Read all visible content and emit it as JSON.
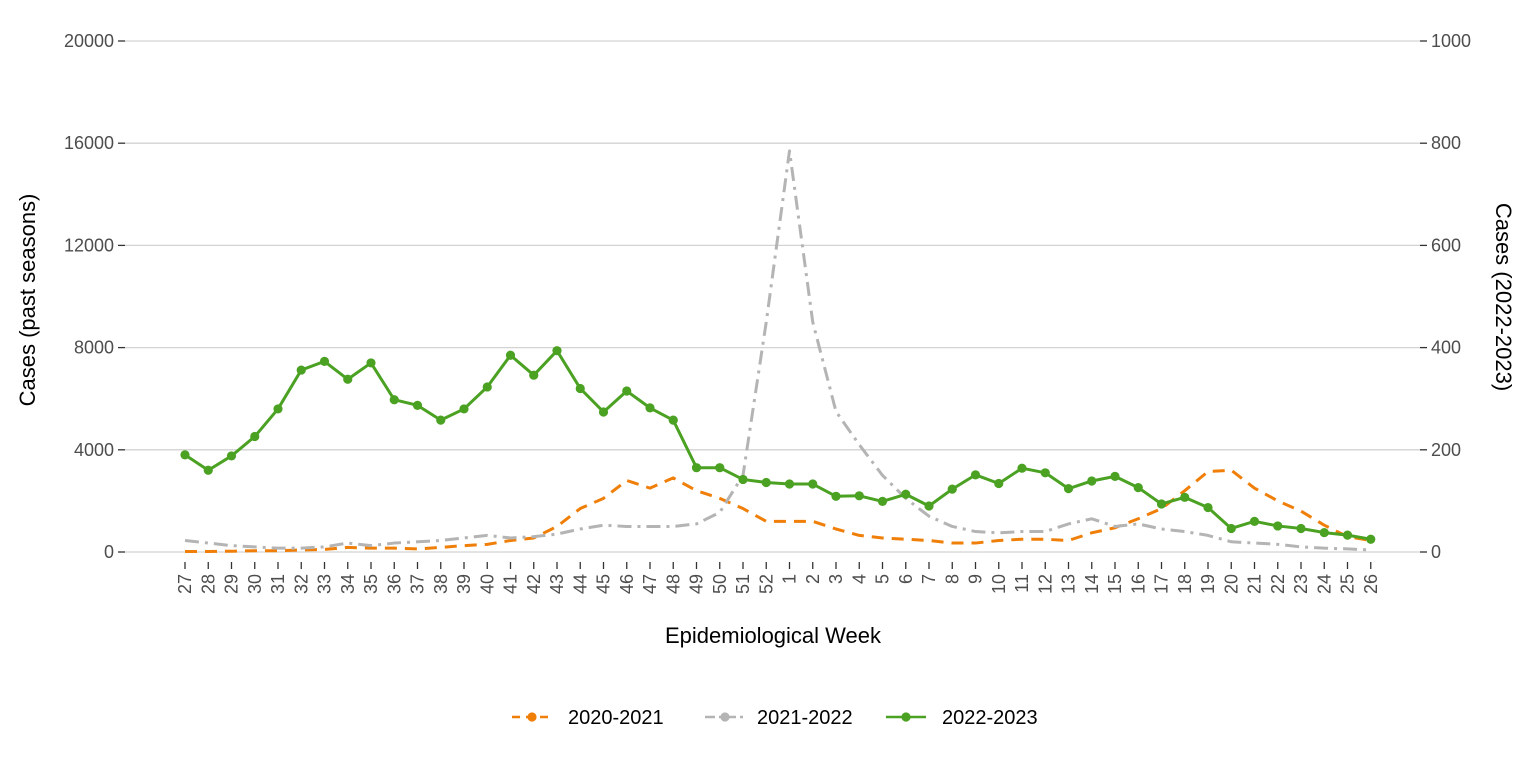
{
  "chart_data": {
    "type": "line",
    "xlabel": "Epidemiological Week",
    "ylabel_left": "Cases (past seasons)",
    "ylabel_right": "Cases (2022-2023)",
    "ylim_left": [
      0,
      20000
    ],
    "ylim_right": [
      0,
      1000
    ],
    "yticks_left": [
      "0",
      "4000",
      "8000",
      "12000",
      "16000",
      "20000"
    ],
    "yticks_right": [
      "0",
      "200",
      "400",
      "600",
      "800",
      "1000"
    ],
    "grid": "horizontal",
    "legend_position": "bottom",
    "categories": [
      "27",
      "28",
      "29",
      "30",
      "31",
      "32",
      "33",
      "34",
      "35",
      "36",
      "37",
      "38",
      "39",
      "40",
      "41",
      "42",
      "43",
      "44",
      "45",
      "46",
      "47",
      "48",
      "49",
      "50",
      "51",
      "52",
      "1",
      "2",
      "3",
      "4",
      "5",
      "6",
      "7",
      "8",
      "9",
      "10",
      "11",
      "12",
      "13",
      "14",
      "15",
      "16",
      "17",
      "18",
      "19",
      "20",
      "21",
      "22",
      "23",
      "24",
      "25",
      "26"
    ],
    "series": [
      {
        "name": "2020-2021",
        "axis": "left",
        "color": "#F07F09",
        "dash": "12,8",
        "values": [
          20,
          20,
          30,
          50,
          50,
          80,
          100,
          180,
          150,
          150,
          120,
          180,
          250,
          300,
          450,
          550,
          1000,
          1700,
          2100,
          2800,
          2500,
          2900,
          2400,
          2100,
          1700,
          1200,
          1200,
          1200,
          900,
          650,
          550,
          500,
          450,
          350,
          350,
          450,
          500,
          500,
          450,
          750,
          950,
          1300,
          1700,
          2400,
          3150,
          3200,
          2500,
          2000,
          1600,
          1050,
          600,
          450
        ]
      },
      {
        "name": "2021-2022",
        "axis": "left",
        "color": "#B4B4B4",
        "dash": "14,6,3,6",
        "values": [
          450,
          350,
          250,
          200,
          150,
          150,
          200,
          350,
          250,
          350,
          400,
          450,
          550,
          650,
          550,
          600,
          700,
          900,
          1050,
          1000,
          1000,
          1000,
          1100,
          1550,
          3000,
          9000,
          15700,
          9000,
          5500,
          4200,
          3000,
          2100,
          1400,
          1000,
          800,
          750,
          800,
          800,
          1100,
          1300,
          1000,
          1100,
          900,
          800,
          650,
          400,
          350,
          300,
          200,
          150,
          120,
          80
        ]
      },
      {
        "name": "2022-2023",
        "axis": "right",
        "color": "#4AA122",
        "dash": "",
        "values": [
          190,
          160,
          188,
          226,
          280,
          356,
          373,
          338,
          370,
          298,
          287,
          258,
          280,
          323,
          385,
          346,
          394,
          320,
          274,
          315,
          282,
          258,
          165,
          165,
          142,
          136,
          133,
          133,
          109,
          110,
          99,
          113,
          90,
          123,
          151,
          134,
          164,
          155,
          124,
          139,
          148,
          126,
          94,
          107,
          87,
          46,
          60,
          51,
          46,
          38,
          33,
          25
        ]
      }
    ]
  }
}
